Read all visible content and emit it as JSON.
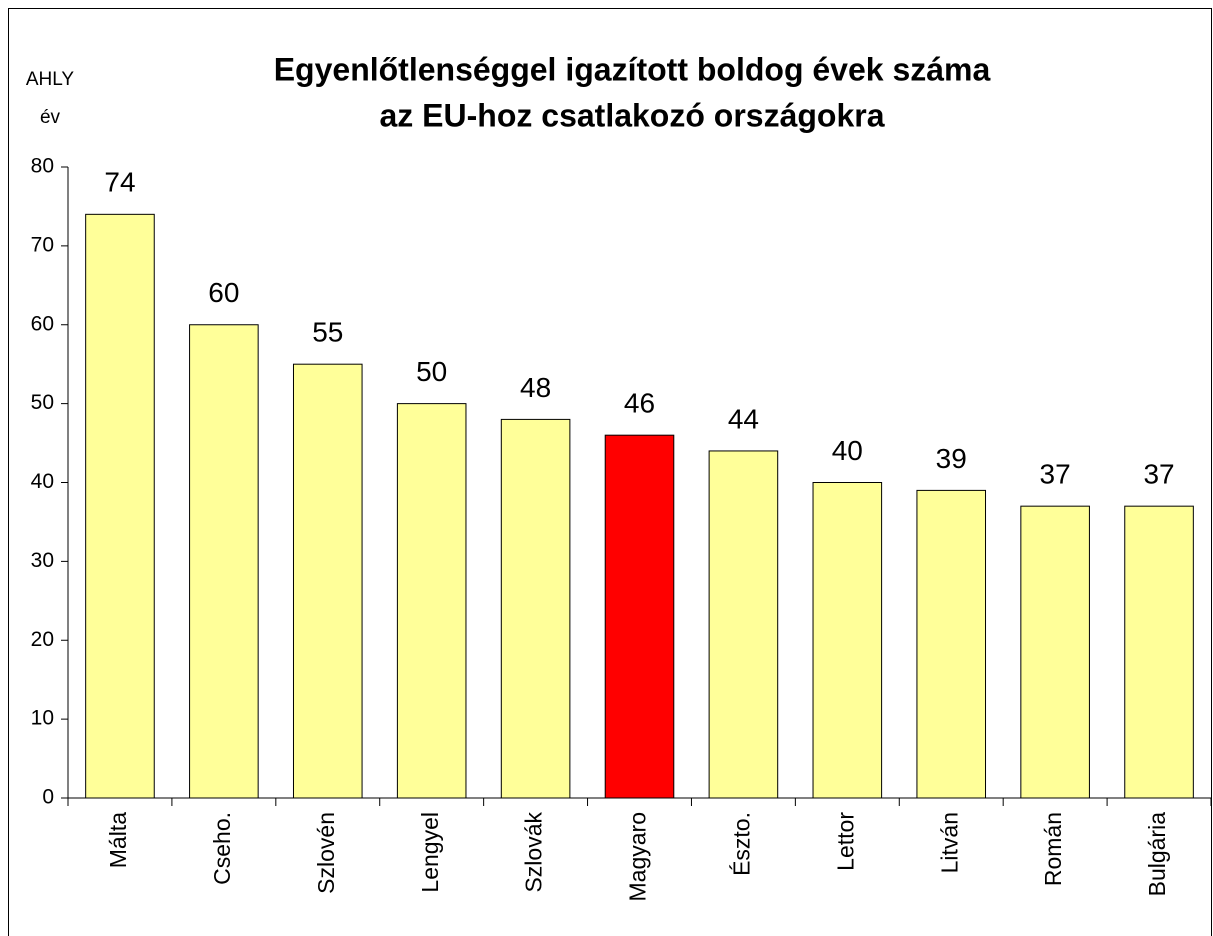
{
  "chart_data": {
    "type": "bar",
    "title": [
      "Egyenlőtlenséggel igazított boldog évek száma",
      "az EU-hoz csatlakozó országokra"
    ],
    "y_label": [
      "AHLY",
      "év"
    ],
    "categories": [
      "Málta",
      "Cseho.",
      "Szlovén",
      "Lengyel",
      "Szlovák",
      "Magyaro",
      "Észto.",
      "Lettor",
      "Litván",
      "Román",
      "Bulgária"
    ],
    "values": [
      74,
      60,
      55,
      50,
      48,
      46,
      44,
      40,
      39,
      37,
      37
    ],
    "colors": [
      "#ffff99",
      "#ffff99",
      "#ffff99",
      "#ffff99",
      "#ffff99",
      "#ff0000",
      "#ffff99",
      "#ffff99",
      "#ffff99",
      "#ffff99",
      "#ffff99"
    ],
    "ylim": [
      0,
      80
    ],
    "yticks": [
      0,
      10,
      20,
      30,
      40,
      50,
      60,
      70,
      80
    ],
    "grid": false
  }
}
